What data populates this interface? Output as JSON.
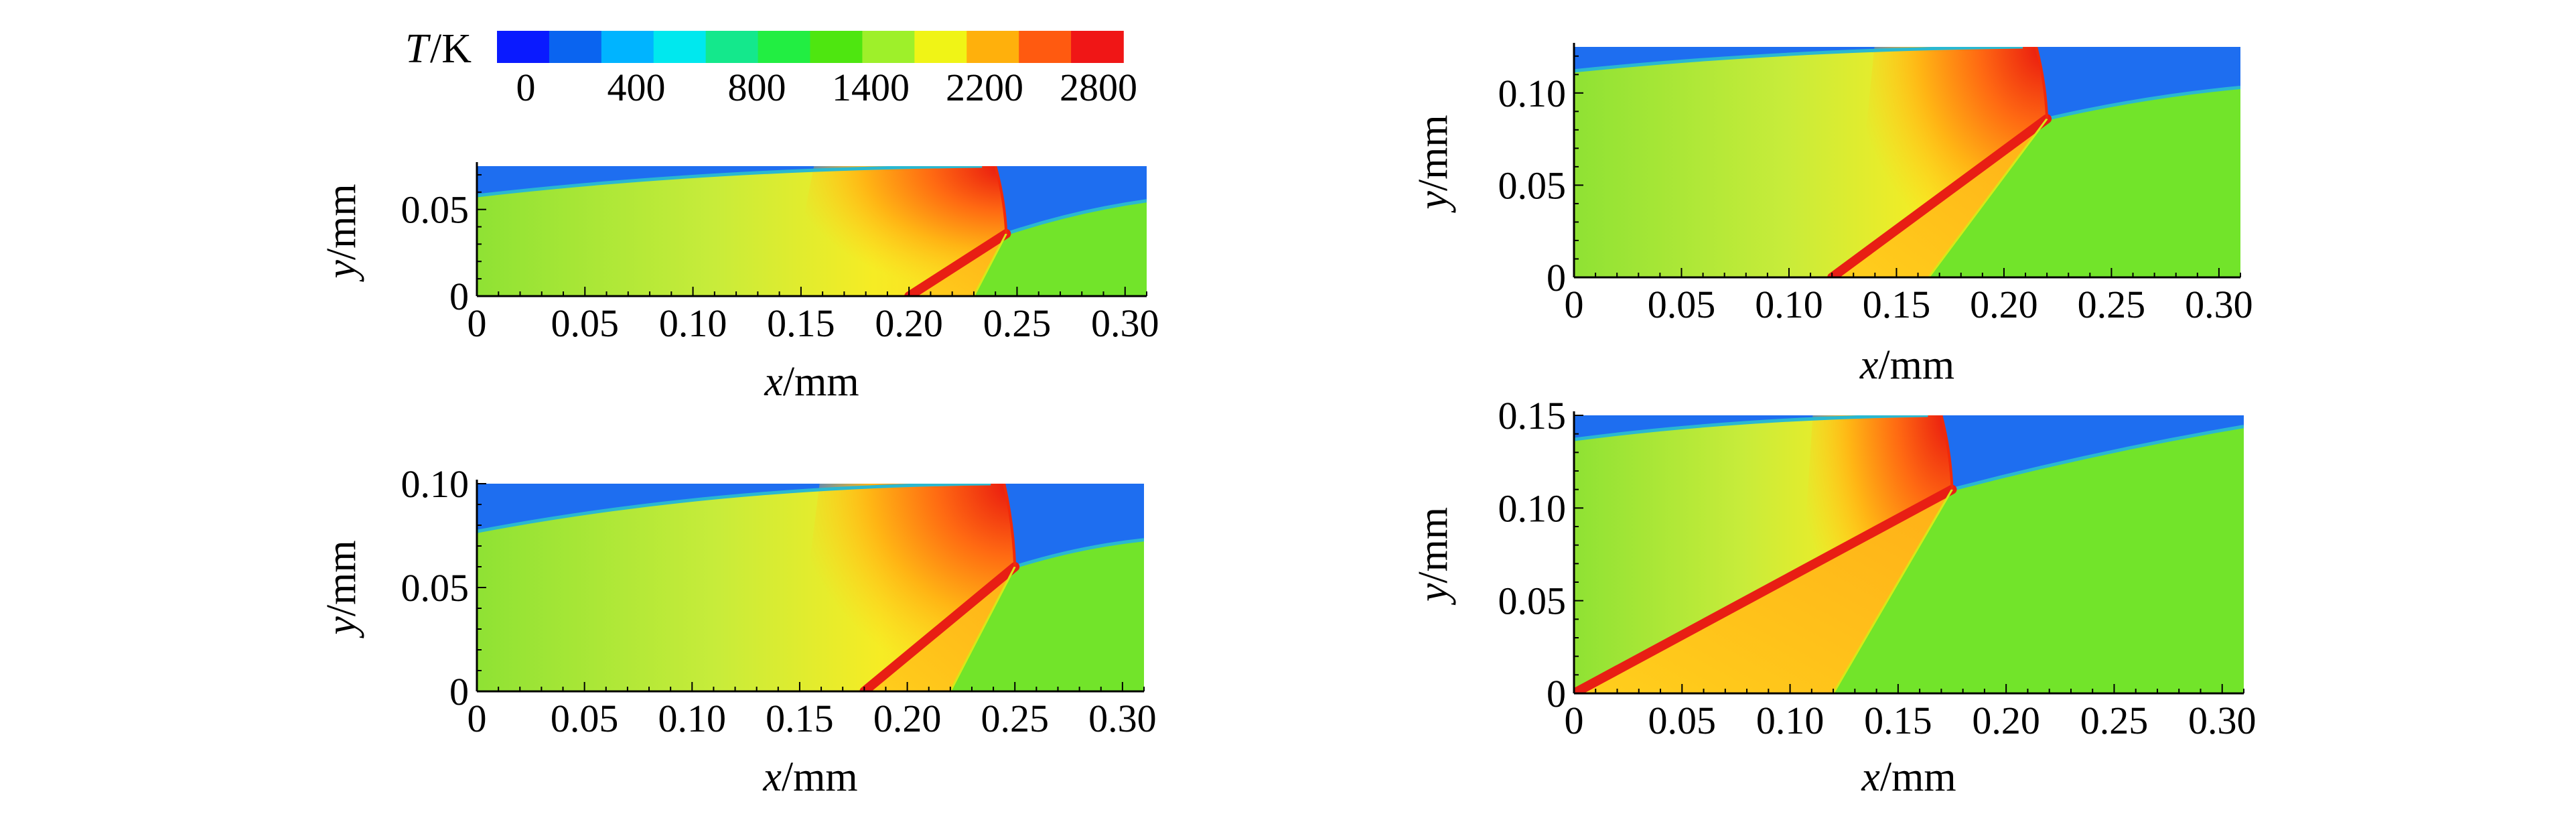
{
  "colorbar": {
    "title_symbol": "T",
    "title_unit": "/K",
    "labels": [
      "0",
      "400",
      "800",
      "1400",
      "2200",
      "2800"
    ],
    "colors": [
      "#0a1aff",
      "#0a64f0",
      "#00b4ff",
      "#00e8ee",
      "#14e88c",
      "#22ee42",
      "#4ee610",
      "#9ef02a",
      "#f0f416",
      "#ffb00c",
      "#ff5a10",
      "#f01616"
    ]
  },
  "colors": {
    "cold_gas": "#1e6ef0",
    "mixing_layer": "#2ab8d0",
    "fresh_mixture": "#72e42a",
    "shocked_mixture": "#9be634",
    "burnt_gas": "#ffd21e",
    "flame": "#e81e14",
    "detonation_front": "#f02a0a"
  },
  "chart_data": [
    {
      "type": "heatmap",
      "panel": "top-left",
      "xlabel_symbol": "x",
      "xlabel_unit": "/mm",
      "ylabel_symbol": "y",
      "ylabel_unit": "/mm",
      "xlim": [
        0,
        0.31
      ],
      "ylim": [
        0,
        0.075
      ],
      "xticks": [
        0,
        0.05,
        0.1,
        0.15,
        0.2,
        0.25,
        0.3
      ],
      "xtick_labels": [
        "0",
        "0.05",
        "0.10",
        "0.15",
        "0.20",
        "0.25",
        "0.30"
      ],
      "yticks": [
        0,
        0.05
      ],
      "ytick_labels": [
        "0",
        "0.05"
      ],
      "colorbar_range": [
        0,
        2800
      ],
      "features": {
        "triple_point": [
          0.245,
          0.036
        ],
        "detonation_front_x": 0.24,
        "shock_foot_x": 0.23,
        "flame_foot_x": 0.2,
        "interface_y_left": 0.058,
        "interface_y_right": 0.055
      }
    },
    {
      "type": "heatmap",
      "panel": "top-right",
      "xlabel_symbol": "x",
      "xlabel_unit": "/mm",
      "ylabel_symbol": "y",
      "ylabel_unit": "/mm",
      "xlim": [
        0,
        0.31
      ],
      "ylim": [
        0,
        0.125
      ],
      "xticks": [
        0,
        0.05,
        0.1,
        0.15,
        0.2,
        0.25,
        0.3
      ],
      "xtick_labels": [
        "0",
        "0.05",
        "0.10",
        "0.15",
        "0.20",
        "0.25",
        "0.30"
      ],
      "yticks": [
        0,
        0.05,
        0.1
      ],
      "ytick_labels": [
        "0",
        "0.05",
        "0.10"
      ],
      "colorbar_range": [
        0,
        2800
      ],
      "features": {
        "triple_point": [
          0.22,
          0.086
        ],
        "detonation_front_x": 0.215,
        "shock_foot_x": 0.165,
        "flame_foot_x": 0.12,
        "interface_y_left": 0.112,
        "interface_y_right": 0.103
      }
    },
    {
      "type": "heatmap",
      "panel": "bottom-left",
      "xlabel_symbol": "x",
      "xlabel_unit": "/mm",
      "ylabel_symbol": "y",
      "ylabel_unit": "/mm",
      "xlim": [
        0,
        0.31
      ],
      "ylim": [
        0,
        0.1
      ],
      "xticks": [
        0,
        0.05,
        0.1,
        0.15,
        0.2,
        0.25,
        0.3
      ],
      "xtick_labels": [
        "0",
        "0.05",
        "0.10",
        "0.15",
        "0.20",
        "0.25",
        "0.30"
      ],
      "yticks": [
        0,
        0.05,
        0.1
      ],
      "ytick_labels": [
        "0",
        "0.05",
        "0.10"
      ],
      "colorbar_range": [
        0,
        2800
      ],
      "features": {
        "triple_point": [
          0.25,
          0.06
        ],
        "detonation_front_x": 0.245,
        "shock_foot_x": 0.22,
        "flame_foot_x": 0.18,
        "interface_y_left": 0.077,
        "interface_y_right": 0.073
      }
    },
    {
      "type": "heatmap",
      "panel": "bottom-right",
      "xlabel_symbol": "x",
      "xlabel_unit": "/mm",
      "ylabel_symbol": "y",
      "ylabel_unit": "/mm",
      "xlim": [
        0,
        0.31
      ],
      "ylim": [
        0,
        0.15
      ],
      "xticks": [
        0,
        0.05,
        0.1,
        0.15,
        0.2,
        0.25,
        0.3
      ],
      "xtick_labels": [
        "0",
        "0.05",
        "0.10",
        "0.15",
        "0.20",
        "0.25",
        "0.30"
      ],
      "yticks": [
        0,
        0.05,
        0.1,
        0.15
      ],
      "ytick_labels": [
        "0",
        "0.05",
        "0.10",
        "0.15"
      ],
      "colorbar_range": [
        0,
        2800
      ],
      "features": {
        "triple_point": [
          0.175,
          0.11
        ],
        "detonation_front_x": 0.17,
        "shock_foot_x": 0.12,
        "flame_foot_x": 0.0,
        "interface_y_left": 0.137,
        "interface_y_right": 0.144
      }
    }
  ]
}
